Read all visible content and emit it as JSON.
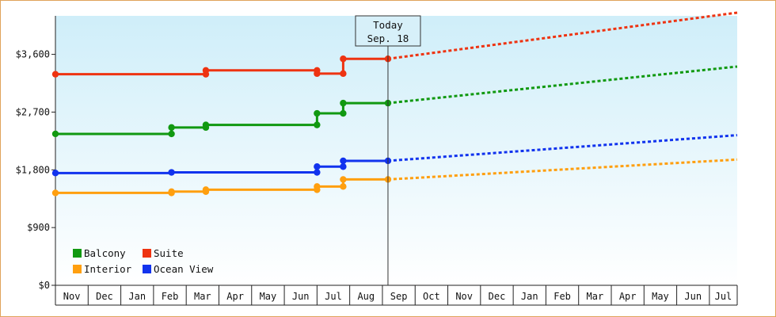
{
  "chart_data": {
    "type": "line",
    "title": "",
    "xlabel": "",
    "ylabel": "",
    "y_ticks": [
      "$0",
      "$900",
      "$1,800",
      "$2,700",
      "$3,600"
    ],
    "y_tick_values": [
      0,
      900,
      1800,
      2700,
      3600
    ],
    "ylim": [
      0,
      4200
    ],
    "x_months": [
      "Nov",
      "Dec",
      "Jan",
      "Feb",
      "Mar",
      "Apr",
      "May",
      "Jun",
      "Jul",
      "Aug",
      "Sep",
      "Oct",
      "Nov",
      "Dec",
      "Jan",
      "Feb",
      "Mar",
      "Apr",
      "May",
      "Jun",
      "Jul"
    ],
    "xlim": [
      0,
      20.85
    ],
    "today": {
      "line1": "Today",
      "line2": "Sep. 18",
      "x": 10.17
    },
    "background": {
      "gradient_top": "#cfeef9",
      "gradient_bottom": "#ffffff"
    },
    "legend": {
      "placement": "bottom-left",
      "columns": 2
    },
    "series": [
      {
        "name": "Balcony",
        "color": "#119911",
        "points": [
          [
            0,
            2360
          ],
          [
            3.55,
            2360
          ],
          [
            3.55,
            2460
          ],
          [
            4.6,
            2460
          ],
          [
            4.6,
            2500
          ],
          [
            8.0,
            2500
          ],
          [
            8.0,
            2680
          ],
          [
            8.8,
            2680
          ],
          [
            8.8,
            2840
          ],
          [
            10.17,
            2840
          ]
        ],
        "markers": [
          [
            0,
            2360
          ],
          [
            3.55,
            2360
          ],
          [
            3.55,
            2460
          ],
          [
            4.6,
            2460
          ],
          [
            4.6,
            2500
          ],
          [
            8.0,
            2500
          ],
          [
            8.0,
            2680
          ],
          [
            8.8,
            2680
          ],
          [
            8.8,
            2840
          ],
          [
            10.17,
            2840
          ]
        ],
        "forecast": [
          [
            10.17,
            2840
          ],
          [
            20.85,
            3410
          ]
        ]
      },
      {
        "name": "Suite",
        "color": "#ee3311",
        "points": [
          [
            0,
            3290
          ],
          [
            4.6,
            3290
          ],
          [
            4.6,
            3350
          ],
          [
            8.0,
            3350
          ],
          [
            8.0,
            3300
          ],
          [
            8.8,
            3300
          ],
          [
            8.8,
            3530
          ],
          [
            10.17,
            3530
          ]
        ],
        "markers": [
          [
            0,
            3290
          ],
          [
            4.6,
            3290
          ],
          [
            4.6,
            3350
          ],
          [
            8.0,
            3350
          ],
          [
            8.0,
            3300
          ],
          [
            8.8,
            3300
          ],
          [
            8.8,
            3530
          ],
          [
            10.17,
            3530
          ]
        ],
        "forecast": [
          [
            10.17,
            3530
          ],
          [
            20.85,
            4250
          ]
        ]
      },
      {
        "name": "Interior",
        "color": "#ff9f0f",
        "points": [
          [
            0,
            1440
          ],
          [
            3.55,
            1440
          ],
          [
            3.55,
            1460
          ],
          [
            4.6,
            1460
          ],
          [
            4.6,
            1490
          ],
          [
            8.0,
            1490
          ],
          [
            8.0,
            1540
          ],
          [
            8.8,
            1540
          ],
          [
            8.8,
            1650
          ],
          [
            10.17,
            1650
          ]
        ],
        "markers": [
          [
            0,
            1440
          ],
          [
            3.55,
            1440
          ],
          [
            3.55,
            1460
          ],
          [
            4.6,
            1460
          ],
          [
            4.6,
            1490
          ],
          [
            8.0,
            1490
          ],
          [
            8.0,
            1540
          ],
          [
            8.8,
            1540
          ],
          [
            8.8,
            1650
          ],
          [
            10.17,
            1650
          ]
        ],
        "forecast": [
          [
            10.17,
            1650
          ],
          [
            20.85,
            1960
          ]
        ]
      },
      {
        "name": "Ocean View",
        "color": "#1133ee",
        "points": [
          [
            0,
            1750
          ],
          [
            3.55,
            1750
          ],
          [
            3.55,
            1760
          ],
          [
            8.0,
            1760
          ],
          [
            8.0,
            1850
          ],
          [
            8.8,
            1850
          ],
          [
            8.8,
            1940
          ],
          [
            10.17,
            1940
          ]
        ],
        "markers": [
          [
            0,
            1750
          ],
          [
            3.55,
            1760
          ],
          [
            8.0,
            1760
          ],
          [
            8.0,
            1850
          ],
          [
            8.8,
            1850
          ],
          [
            8.8,
            1940
          ],
          [
            10.17,
            1940
          ]
        ],
        "forecast": [
          [
            10.17,
            1940
          ],
          [
            20.85,
            2340
          ]
        ]
      }
    ]
  }
}
